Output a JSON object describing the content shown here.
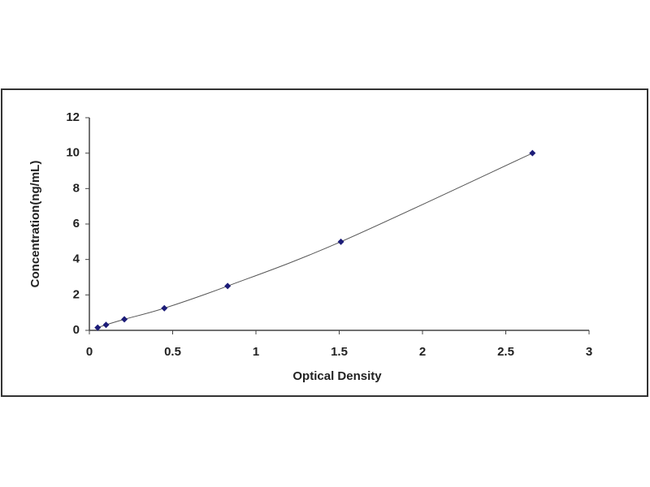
{
  "chart_data": {
    "type": "scatter",
    "x_label": "Optical Density",
    "y_label": "Concentration(ng/mL)",
    "x": [
      0.05,
      0.1,
      0.21,
      0.45,
      0.83,
      1.51,
      2.66
    ],
    "series": [
      {
        "color": "#1c1c78",
        "values": [
          0.156,
          0.312,
          0.625,
          1.25,
          2.5,
          5,
          10
        ]
      }
    ],
    "line_color": "#555555",
    "xlim": [
      0,
      3
    ],
    "xticks": [
      0,
      0.5,
      1,
      1.5,
      2,
      2.5,
      3
    ],
    "ylim": [
      0,
      12
    ],
    "yticks": [
      0,
      2,
      4,
      6,
      8,
      10,
      12
    ],
    "grid": false
  }
}
